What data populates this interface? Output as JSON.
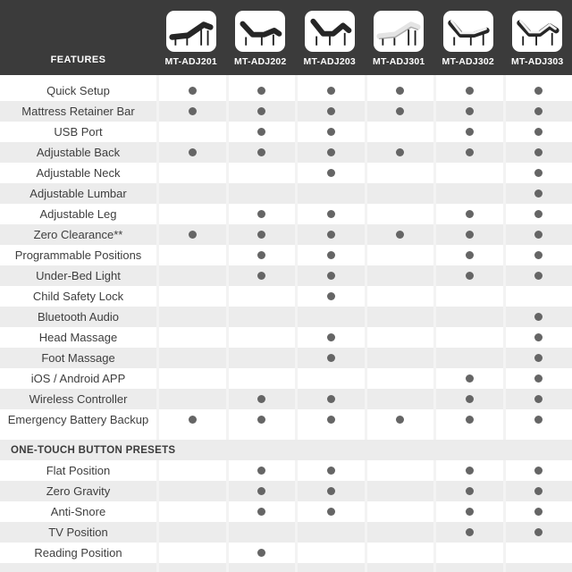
{
  "header": {
    "features_label": "FEATURES",
    "products": [
      {
        "model": "MT-ADJ201",
        "image": "adjustable-bed-dark-slight-incline"
      },
      {
        "model": "MT-ADJ202",
        "image": "adjustable-bed-dark-head-and-foot-raised"
      },
      {
        "model": "MT-ADJ203",
        "image": "adjustable-bed-dark-head-and-foot-raised-high"
      },
      {
        "model": "MT-ADJ301",
        "image": "adjustable-bed-light-slight-incline"
      },
      {
        "model": "MT-ADJ302",
        "image": "adjustable-bed-two-tone-head-raised"
      },
      {
        "model": "MT-ADJ303",
        "image": "adjustable-bed-two-tone-head-and-foot-raised"
      }
    ]
  },
  "features": [
    {
      "label": "Quick Setup",
      "models": [
        true,
        true,
        true,
        true,
        true,
        true
      ]
    },
    {
      "label": "Mattress Retainer Bar",
      "models": [
        true,
        true,
        true,
        true,
        true,
        true
      ]
    },
    {
      "label": "USB Port",
      "models": [
        false,
        true,
        true,
        false,
        true,
        true
      ]
    },
    {
      "label": "Adjustable Back",
      "models": [
        true,
        true,
        true,
        true,
        true,
        true
      ]
    },
    {
      "label": "Adjustable Neck",
      "models": [
        false,
        false,
        true,
        false,
        false,
        true
      ]
    },
    {
      "label": "Adjustable Lumbar",
      "models": [
        false,
        false,
        false,
        false,
        false,
        true
      ]
    },
    {
      "label": "Adjustable Leg",
      "models": [
        false,
        true,
        true,
        false,
        true,
        true
      ]
    },
    {
      "label": "Zero Clearance**",
      "models": [
        true,
        true,
        true,
        true,
        true,
        true
      ]
    },
    {
      "label": "Programmable Positions",
      "models": [
        false,
        true,
        true,
        false,
        true,
        true
      ]
    },
    {
      "label": "Under-Bed Light",
      "models": [
        false,
        true,
        true,
        false,
        true,
        true
      ]
    },
    {
      "label": "Child Safety Lock",
      "models": [
        false,
        false,
        true,
        false,
        false,
        false
      ]
    },
    {
      "label": "Bluetooth Audio",
      "models": [
        false,
        false,
        false,
        false,
        false,
        true
      ]
    },
    {
      "label": "Head Massage",
      "models": [
        false,
        false,
        true,
        false,
        false,
        true
      ]
    },
    {
      "label": "Foot Massage",
      "models": [
        false,
        false,
        true,
        false,
        false,
        true
      ]
    },
    {
      "label": "iOS / Android APP",
      "models": [
        false,
        false,
        false,
        false,
        true,
        true
      ]
    },
    {
      "label": "Wireless Controller",
      "models": [
        false,
        true,
        true,
        false,
        true,
        true
      ]
    },
    {
      "label": "Emergency Battery Backup",
      "models": [
        true,
        true,
        true,
        true,
        true,
        true
      ]
    }
  ],
  "presets_section_label": "ONE-TOUCH BUTTON PRESETS",
  "presets": [
    {
      "label": "Flat Position",
      "models": [
        false,
        true,
        true,
        false,
        true,
        true
      ]
    },
    {
      "label": "Zero Gravity",
      "models": [
        false,
        true,
        true,
        false,
        true,
        true
      ]
    },
    {
      "label": "Anti-Snore",
      "models": [
        false,
        true,
        true,
        false,
        true,
        true
      ]
    },
    {
      "label": "TV Position",
      "models": [
        false,
        false,
        false,
        false,
        true,
        true
      ]
    },
    {
      "label": "Reading Position",
      "models": [
        false,
        true,
        false,
        false,
        false,
        false
      ]
    }
  ],
  "colors": {
    "header_bg": "#3b3b3b",
    "header_text": "#ffffff",
    "row_alt_bg": "#ececec",
    "row_text": "#3e3e3e",
    "dot": "#656565",
    "tile_bg": "#ffffff"
  }
}
